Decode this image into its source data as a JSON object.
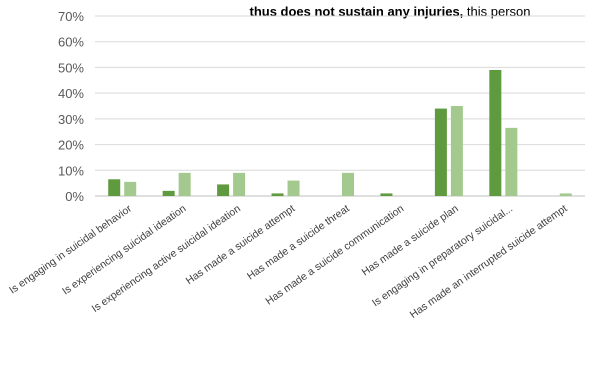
{
  "chart_data": {
    "type": "bar",
    "title_bold": "thus does not sustain any injuries,",
    "title_rest": " this person",
    "xlabel": "",
    "ylabel": "",
    "ylim": [
      0,
      70
    ],
    "yticks": [
      0,
      10,
      20,
      30,
      40,
      50,
      60,
      70
    ],
    "ytick_labels": [
      "0%",
      "10%",
      "20%",
      "30%",
      "40%",
      "50%",
      "60%",
      "70%"
    ],
    "categories": [
      "Is engaging in suicidal behavior",
      "Is experiencing suicidal ideation",
      "Is experiencing active suicidal ideation",
      "Has made a suicide attempt",
      "Has made a suicide threat",
      "Has made a suicide communication",
      "Has made a suicide plan",
      "Is engaging in preparatory suicidal...",
      "Has made an interrupted suicide attempt"
    ],
    "series": [
      {
        "values": [
          6.5,
          2,
          4.5,
          1,
          0,
          1,
          34,
          49,
          0
        ]
      },
      {
        "values": [
          5.5,
          9,
          9,
          6,
          9,
          0,
          35,
          26.5,
          1
        ]
      }
    ],
    "colors": [
      "#5f9a3f",
      "#a3c98e"
    ],
    "grid": true,
    "legend": "none"
  }
}
